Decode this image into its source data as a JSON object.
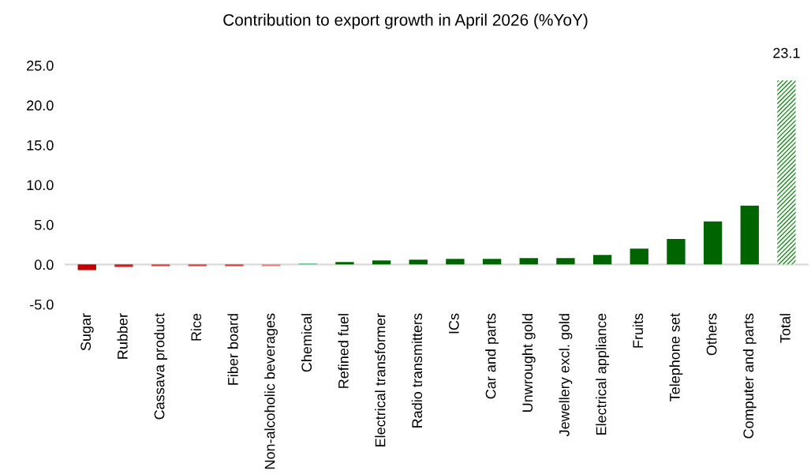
{
  "chart_data": {
    "type": "bar",
    "title": "Contribution to export growth in April 2026 (%YoY)",
    "categories": [
      "Sugar",
      "Rubber",
      "Cassava product",
      "Rice",
      "Fiber board",
      "Non-alcoholic beverages",
      "Chemical",
      "Refined fuel",
      "Electrical transformer",
      "Radio transmitters",
      "ICs",
      "Car and parts",
      "Unwrought gold",
      "Jewellery excl. gold",
      "Electrical appliance",
      "Fruits",
      "Telephone set",
      "Others",
      "Computer and parts",
      "Total"
    ],
    "values": [
      -0.7,
      -0.3,
      -0.2,
      -0.2,
      -0.2,
      -0.2,
      0.1,
      0.3,
      0.5,
      0.6,
      0.7,
      0.7,
      0.8,
      0.8,
      1.2,
      2.0,
      3.2,
      5.4,
      7.4,
      23.1
    ],
    "colors": [
      "#c00000",
      "#d02020",
      "#e04040",
      "#e04040",
      "#e04040",
      "#f08080",
      "#3cb371",
      "#006400",
      "#006400",
      "#006400",
      "#006400",
      "#006400",
      "#006400",
      "#006400",
      "#006400",
      "#006400",
      "#006400",
      "#006400",
      "#006400",
      "#1e8c1e"
    ],
    "value_labels": [
      null,
      null,
      null,
      null,
      null,
      null,
      null,
      null,
      null,
      null,
      null,
      null,
      null,
      null,
      null,
      null,
      null,
      null,
      null,
      "23.1"
    ],
    "ylim": [
      -5.0,
      25.0
    ],
    "yticks": [
      {
        "value": -5,
        "label": "-5.0"
      },
      {
        "value": 0,
        "label": "0.0"
      },
      {
        "value": 5,
        "label": "5.0"
      },
      {
        "value": 10,
        "label": "10.0"
      },
      {
        "value": 15,
        "label": "15.0"
      },
      {
        "value": 20,
        "label": "20.0"
      },
      {
        "value": 25,
        "label": "25.0"
      }
    ],
    "ref_lines": [
      {
        "axis": "y",
        "value": 0,
        "color": "#d9d9d9"
      }
    ],
    "grid": false,
    "legend": false
  }
}
